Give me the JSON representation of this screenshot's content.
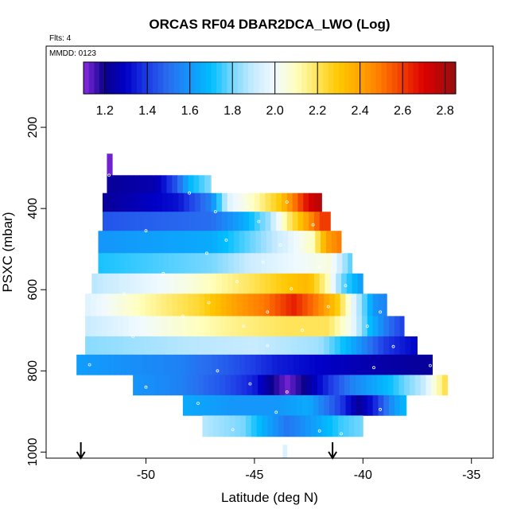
{
  "chart_data": {
    "type": "heatmap",
    "title": "ORCAS RF04 DBAR2DCA_LWO (Log)",
    "flights_note": "Flts: 4",
    "date_note": "MMDD: 0123",
    "xlabel": "Latitude (deg N)",
    "ylabel": "PSXC (mbar)",
    "xlim": [
      -54.6,
      -34.0
    ],
    "ylim": [
      1015,
      0
    ],
    "xticks": [
      -50,
      -45,
      -40,
      -35
    ],
    "xtick_labels": [
      "-50",
      "-45",
      "-40",
      "-35"
    ],
    "yticks": [
      200,
      400,
      600,
      800,
      1000
    ],
    "ytick_labels": [
      "200",
      "400",
      "600",
      "800",
      "1000"
    ],
    "colorbar": {
      "min": 1.1,
      "max": 2.85,
      "ticks": [
        1.2,
        1.4,
        1.6,
        1.8,
        2.0,
        2.2,
        2.4,
        2.6,
        2.8
      ],
      "tick_labels": [
        "1.2",
        "1.4",
        "1.6",
        "1.8",
        "2.0",
        "2.2",
        "2.4",
        "2.6",
        "2.8"
      ]
    },
    "arrows_latitude": [
      -53.0,
      -41.4
    ],
    "bands": [
      {
        "p_top": 265,
        "p_bot": 318,
        "x_start": -51.8,
        "x_end": -51.55,
        "stops": [
          [
            -51.8,
            1.12
          ],
          [
            -51.55,
            1.12
          ]
        ]
      },
      {
        "p_top": 318,
        "p_bot": 362,
        "x_start": -51.8,
        "x_end": -47.0,
        "stops": [
          [
            -51.8,
            1.22
          ],
          [
            -49.5,
            1.26
          ],
          [
            -48.6,
            1.45
          ],
          [
            -48.0,
            1.68
          ],
          [
            -47.0,
            1.82
          ]
        ]
      },
      {
        "p_top": 362,
        "p_bot": 408,
        "x_start": -52.0,
        "x_end": -41.9,
        "stops": [
          [
            -52.0,
            1.22
          ],
          [
            -48.5,
            1.33
          ],
          [
            -47.0,
            1.55
          ],
          [
            -46.2,
            1.95
          ],
          [
            -45.0,
            2.1
          ],
          [
            -43.8,
            2.3
          ],
          [
            -43.0,
            2.55
          ],
          [
            -42.5,
            2.7
          ],
          [
            -41.9,
            2.8
          ]
        ]
      },
      {
        "p_top": 408,
        "p_bot": 455,
        "x_start": -52.0,
        "x_end": -41.5,
        "stops": [
          [
            -52.0,
            1.45
          ],
          [
            -47.0,
            1.5
          ],
          [
            -45.5,
            1.65
          ],
          [
            -44.3,
            1.85
          ],
          [
            -43.5,
            2.15
          ],
          [
            -42.6,
            2.4
          ],
          [
            -41.9,
            2.6
          ],
          [
            -41.5,
            2.6
          ]
        ]
      },
      {
        "p_top": 455,
        "p_bot": 510,
        "x_start": -52.2,
        "x_end": -41.0,
        "stops": [
          [
            -52.2,
            1.6
          ],
          [
            -47.0,
            1.65
          ],
          [
            -45.0,
            1.8
          ],
          [
            -43.5,
            1.95
          ],
          [
            -42.3,
            2.1
          ],
          [
            -41.7,
            2.4
          ],
          [
            -41.0,
            2.5
          ]
        ]
      },
      {
        "p_top": 510,
        "p_bot": 560,
        "x_start": -52.2,
        "x_end": -40.5,
        "stops": [
          [
            -52.2,
            1.72
          ],
          [
            -47.0,
            1.8
          ],
          [
            -45.0,
            1.92
          ],
          [
            -43.0,
            2.0
          ],
          [
            -41.5,
            2.05
          ],
          [
            -40.5,
            1.75
          ]
        ]
      },
      {
        "p_top": 560,
        "p_bot": 610,
        "x_start": -52.5,
        "x_end": -40.0,
        "stops": [
          [
            -52.5,
            1.88
          ],
          [
            -48.0,
            2.05
          ],
          [
            -45.5,
            2.18
          ],
          [
            -43.5,
            2.3
          ],
          [
            -42.5,
            2.35
          ],
          [
            -41.6,
            2.1
          ],
          [
            -41.0,
            1.8
          ],
          [
            -40.0,
            1.6
          ]
        ]
      },
      {
        "p_top": 610,
        "p_bot": 665,
        "x_start": -52.8,
        "x_end": -38.9,
        "stops": [
          [
            -52.8,
            1.95
          ],
          [
            -50.0,
            2.12
          ],
          [
            -47.5,
            2.25
          ],
          [
            -46.0,
            2.4
          ],
          [
            -44.5,
            2.5
          ],
          [
            -43.2,
            2.65
          ],
          [
            -42.2,
            2.5
          ],
          [
            -41.2,
            2.3
          ],
          [
            -40.5,
            2.0
          ],
          [
            -39.5,
            1.6
          ],
          [
            -38.9,
            1.55
          ]
        ]
      },
      {
        "p_top": 665,
        "p_bot": 715,
        "x_start": -52.8,
        "x_end": -38.1,
        "stops": [
          [
            -52.8,
            1.9
          ],
          [
            -49.0,
            2.05
          ],
          [
            -46.0,
            2.15
          ],
          [
            -43.5,
            2.2
          ],
          [
            -41.6,
            2.2
          ],
          [
            -40.5,
            2.0
          ],
          [
            -39.7,
            1.7
          ],
          [
            -38.8,
            1.5
          ],
          [
            -38.1,
            1.4
          ]
        ]
      },
      {
        "p_top": 715,
        "p_bot": 760,
        "x_start": -52.8,
        "x_end": -37.5,
        "stops": [
          [
            -52.8,
            1.82
          ],
          [
            -48.0,
            1.88
          ],
          [
            -45.0,
            1.9
          ],
          [
            -42.0,
            1.85
          ],
          [
            -40.5,
            1.65
          ],
          [
            -39.0,
            1.4
          ],
          [
            -37.5,
            1.3
          ]
        ]
      },
      {
        "p_top": 760,
        "p_bot": 810,
        "x_start": -53.2,
        "x_end": -36.8,
        "stops": [
          [
            -53.2,
            1.62
          ],
          [
            -48.5,
            1.55
          ],
          [
            -46.0,
            1.45
          ],
          [
            -44.0,
            1.35
          ],
          [
            -42.0,
            1.3
          ],
          [
            -39.5,
            1.25
          ],
          [
            -36.8,
            1.22
          ]
        ]
      },
      {
        "p_top": 810,
        "p_bot": 860,
        "x_start": -50.6,
        "x_end": -36.1,
        "stops": [
          [
            -50.6,
            1.6
          ],
          [
            -48.5,
            1.55
          ],
          [
            -46.5,
            1.45
          ],
          [
            -45.0,
            1.35
          ],
          [
            -44.2,
            1.2
          ],
          [
            -43.5,
            1.12
          ],
          [
            -42.7,
            1.2
          ],
          [
            -41.8,
            1.35
          ],
          [
            -40.5,
            1.55
          ],
          [
            -38.8,
            1.7
          ],
          [
            -37.2,
            1.9
          ],
          [
            -36.1,
            2.25
          ]
        ]
      },
      {
        "p_top": 860,
        "p_bot": 910,
        "x_start": -48.3,
        "x_end": -38.0,
        "stops": [
          [
            -48.3,
            1.65
          ],
          [
            -46.0,
            1.6
          ],
          [
            -44.0,
            1.6
          ],
          [
            -42.5,
            1.65
          ],
          [
            -41.0,
            1.4
          ],
          [
            -40.2,
            1.22
          ],
          [
            -39.5,
            1.35
          ],
          [
            -38.6,
            1.6
          ],
          [
            -38.0,
            1.7
          ]
        ]
      },
      {
        "p_top": 910,
        "p_bot": 962,
        "x_start": -47.4,
        "x_end": -40.0,
        "stops": [
          [
            -47.4,
            1.88
          ],
          [
            -45.5,
            1.8
          ],
          [
            -44.5,
            1.65
          ],
          [
            -43.5,
            1.52
          ],
          [
            -42.3,
            1.62
          ],
          [
            -41.0,
            1.75
          ],
          [
            -40.0,
            1.8
          ]
        ]
      },
      {
        "p_top": 982,
        "p_bot": 1015,
        "x_start": -43.7,
        "x_end": -43.5,
        "stops": [
          [
            -43.7,
            1.95
          ],
          [
            -43.5,
            1.95
          ]
        ]
      }
    ],
    "sample_points": [
      [
        -51.7,
        318
      ],
      [
        -48.0,
        362
      ],
      [
        -45.3,
        395
      ],
      [
        -43.5,
        384
      ],
      [
        -46.8,
        408
      ],
      [
        -44.8,
        432
      ],
      [
        -42.3,
        440
      ],
      [
        -50.0,
        455
      ],
      [
        -46.3,
        478
      ],
      [
        -43.8,
        490
      ],
      [
        -47.2,
        510
      ],
      [
        -44.6,
        532
      ],
      [
        -42.0,
        545
      ],
      [
        -49.2,
        560
      ],
      [
        -45.8,
        580
      ],
      [
        -43.3,
        598
      ],
      [
        -40.8,
        590
      ],
      [
        -51.0,
        610
      ],
      [
        -47.1,
        632
      ],
      [
        -44.4,
        655
      ],
      [
        -41.6,
        642
      ],
      [
        -39.2,
        655
      ],
      [
        -48.3,
        665
      ],
      [
        -45.5,
        690
      ],
      [
        -42.8,
        700
      ],
      [
        -39.8,
        690
      ],
      [
        -50.6,
        715
      ],
      [
        -44.4,
        738
      ],
      [
        -38.6,
        740
      ],
      [
        -52.6,
        785
      ],
      [
        -46.7,
        800
      ],
      [
        -39.5,
        792
      ],
      [
        -36.9,
        787
      ],
      [
        -50.0,
        840
      ],
      [
        -45.2,
        832
      ],
      [
        -43.5,
        852
      ],
      [
        -47.6,
        880
      ],
      [
        -44.0,
        902
      ],
      [
        -39.2,
        895
      ],
      [
        -46.0,
        945
      ],
      [
        -42.0,
        948
      ],
      [
        -41.0,
        955
      ]
    ]
  }
}
